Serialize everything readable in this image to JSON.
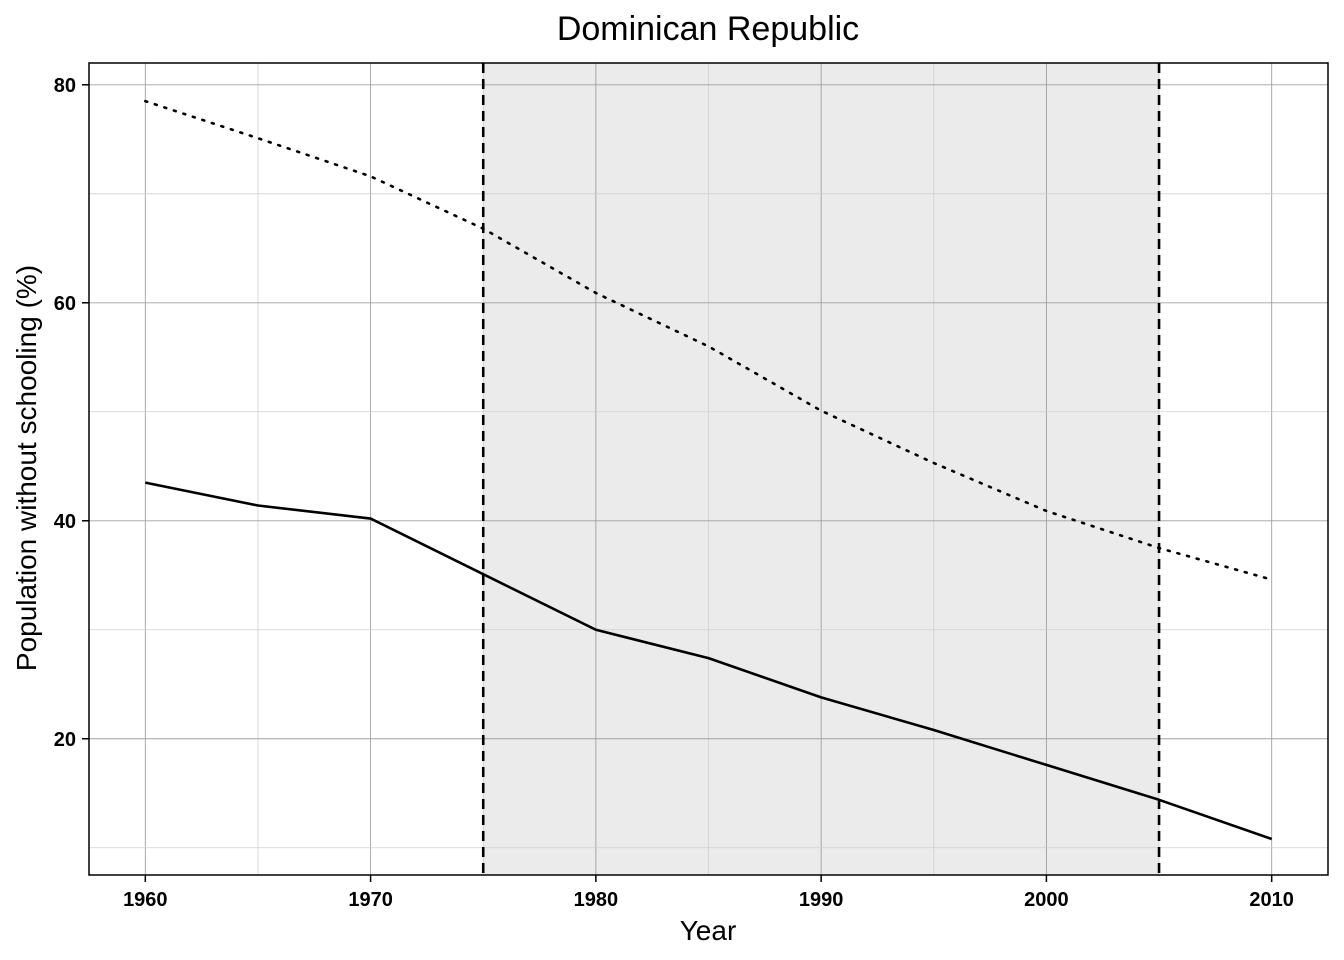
{
  "chart_data": {
    "type": "line",
    "title": "Dominican Republic",
    "xlabel": "Year",
    "ylabel": "Population without schooling (%)",
    "xlim": [
      1957.5,
      2012.5
    ],
    "ylim": [
      7.5,
      82
    ],
    "x_ticks": [
      1960,
      1970,
      1980,
      1990,
      2000,
      2010
    ],
    "y_ticks": [
      20,
      40,
      60,
      80
    ],
    "x": [
      1960,
      1965,
      1970,
      1975,
      1980,
      1985,
      1990,
      1995,
      2000,
      2005,
      2010
    ],
    "series": [
      {
        "style": "dotted",
        "values": [
          78.5,
          75.1,
          71.6,
          66.8,
          60.9,
          56.0,
          50.1,
          45.3,
          40.9,
          37.5,
          34.6
        ]
      },
      {
        "style": "solid",
        "values": [
          43.5,
          41.4,
          40.2,
          35.1,
          30.0,
          27.4,
          23.8,
          20.8,
          17.6,
          14.4,
          10.8
        ]
      }
    ],
    "shaded_region": [
      1975,
      2005
    ],
    "vertical_lines": [
      1975,
      2005
    ],
    "grid": true,
    "colors": {
      "line": "#000000",
      "shade": "#ebebeb",
      "grid_major": "#a0a0a0",
      "grid_minor": "#d0d0d0"
    }
  }
}
